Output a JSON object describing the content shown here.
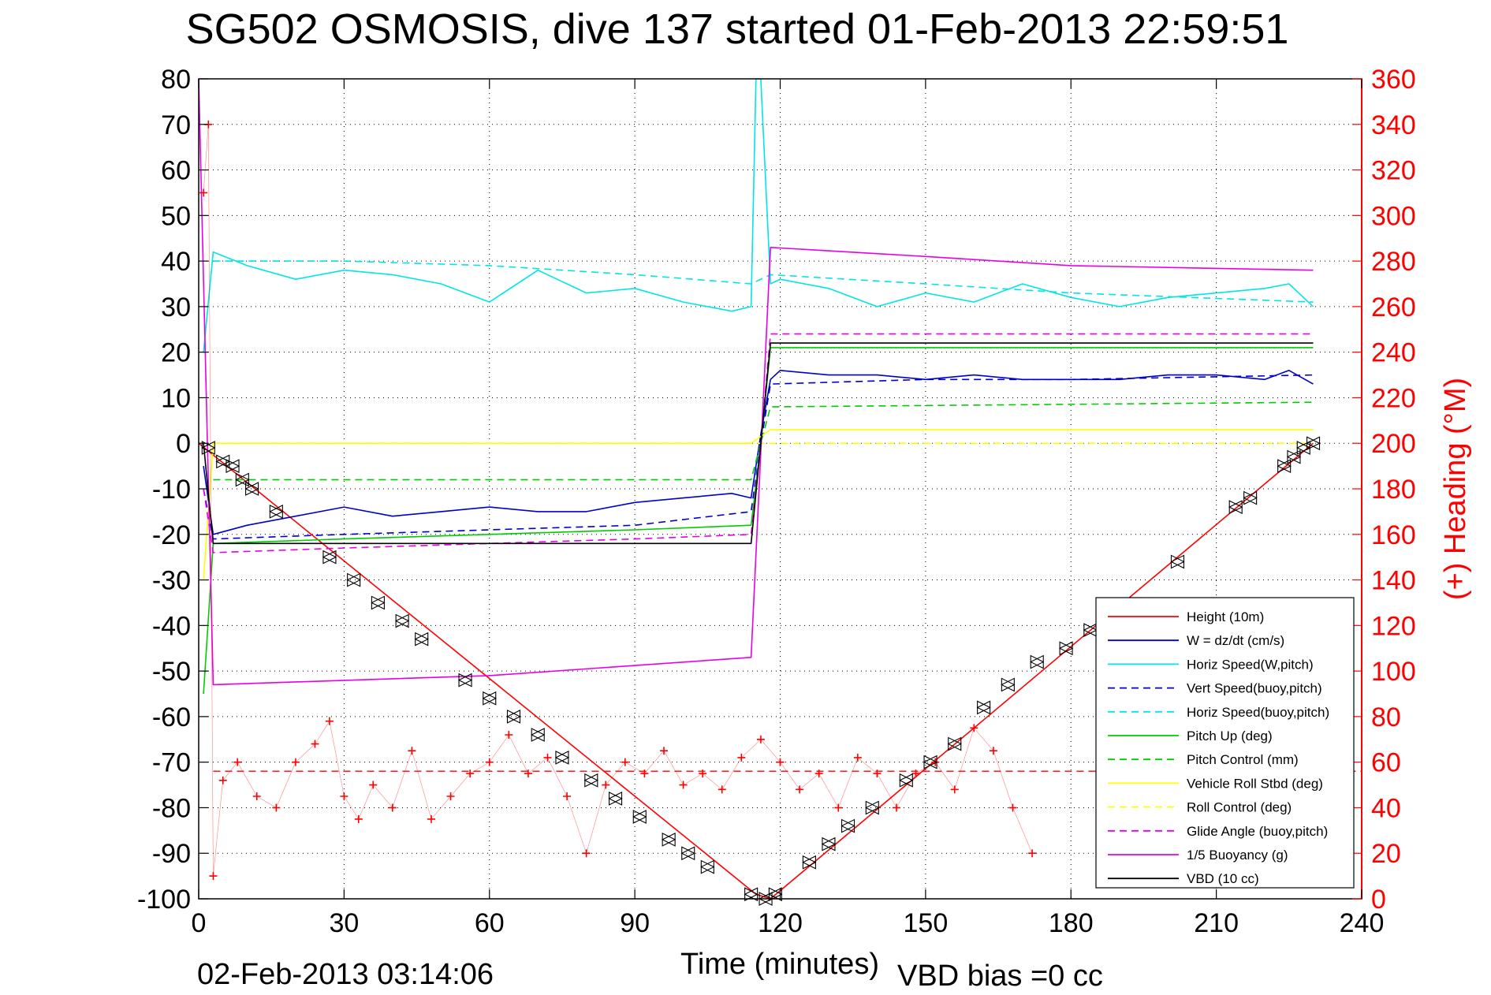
{
  "chart_data": {
    "type": "line",
    "title": "SG502 OSMOSIS, dive 137 started 01-Feb-2013 22:59:51",
    "xlabel": "Time (minutes)",
    "ylabel_right": "(+) Heading (°M)",
    "footer_left": "02-Feb-2013 03:14:06",
    "footer_right": "VBD bias =0 cc",
    "xlim": [
      0,
      240
    ],
    "ylim": [
      -100,
      80
    ],
    "ylim_right": [
      0,
      360
    ],
    "x_ticks": [
      "0",
      "30",
      "60",
      "90",
      "120",
      "150",
      "180",
      "210",
      "240"
    ],
    "y_ticks": [
      "80",
      "70",
      "60",
      "50",
      "40",
      "30",
      "20",
      "10",
      "0",
      "-10",
      "-20",
      "-30",
      "-40",
      "-50",
      "-60",
      "-70",
      "-80",
      "-90",
      "-100"
    ],
    "y_right_ticks": [
      "360",
      "340",
      "320",
      "300",
      "280",
      "260",
      "240",
      "220",
      "200",
      "180",
      "160",
      "140",
      "120",
      "100",
      "80",
      "60",
      "40",
      "20",
      "0"
    ],
    "grid": true,
    "legend_position": "bottom-right",
    "series": [
      {
        "name": "Height (10m)",
        "color": "#ff0000",
        "style": "solid",
        "x": [
          0,
          115,
          118,
          230
        ],
        "y": [
          0,
          -99,
          -100,
          0
        ]
      },
      {
        "name": "W = dz/dt (cm/s)",
        "color": "#0000cc",
        "style": "solid",
        "x": [
          1,
          3,
          10,
          20,
          30,
          40,
          50,
          60,
          70,
          80,
          90,
          100,
          110,
          114,
          116,
          118,
          120,
          130,
          140,
          150,
          160,
          170,
          180,
          190,
          200,
          210,
          220,
          225,
          230
        ],
        "y": [
          -5,
          -20,
          -18,
          -16,
          -14,
          -16,
          -15,
          -14,
          -15,
          -15,
          -13,
          -12,
          -11,
          -12,
          2,
          14,
          16,
          15,
          15,
          14,
          15,
          14,
          14,
          14,
          15,
          15,
          14,
          16,
          13
        ]
      },
      {
        "name": "Horiz Speed(W,pitch)",
        "color": "#00e5e5",
        "style": "solid",
        "x": [
          1,
          3,
          10,
          20,
          30,
          40,
          50,
          60,
          70,
          80,
          90,
          100,
          110,
          114,
          115,
          116,
          118,
          120,
          130,
          140,
          150,
          160,
          170,
          180,
          190,
          200,
          210,
          220,
          225,
          230
        ],
        "y": [
          20,
          42,
          39,
          36,
          38,
          37,
          35,
          31,
          38,
          33,
          34,
          31,
          29,
          30,
          80,
          80,
          35,
          36,
          34,
          30,
          33,
          31,
          35,
          32,
          30,
          32,
          33,
          34,
          35,
          30
        ]
      },
      {
        "name": "Vert Speed(buoy,pitch)",
        "color": "#0000cc",
        "style": "dashed",
        "x": [
          1,
          3,
          30,
          60,
          90,
          114,
          116,
          118,
          150,
          180,
          230
        ],
        "y": [
          -10,
          -21,
          -20,
          -19,
          -18,
          -15,
          0,
          13,
          14,
          14,
          15
        ]
      },
      {
        "name": "Horiz Speed(buoy,pitch)",
        "color": "#00e5e5",
        "style": "dashed",
        "x": [
          3,
          30,
          60,
          90,
          114,
          118,
          150,
          180,
          230
        ],
        "y": [
          40,
          40,
          39,
          37,
          35,
          37,
          35,
          33,
          31
        ]
      },
      {
        "name": "Pitch Up (deg)",
        "color": "#00cc00",
        "style": "solid",
        "x": [
          1,
          3,
          30,
          60,
          90,
          114,
          116,
          118,
          150,
          180,
          230
        ],
        "y": [
          -55,
          -22,
          -21,
          -20,
          -19,
          -18,
          0,
          21,
          21,
          21,
          21
        ]
      },
      {
        "name": "Pitch Control (mm)",
        "color": "#00cc00",
        "style": "dashed",
        "x": [
          3,
          114,
          118,
          230
        ],
        "y": [
          -8,
          -8,
          8,
          9
        ]
      },
      {
        "name": "Vehicle Roll Stbd (deg)",
        "color": "#ffff00",
        "style": "solid",
        "x": [
          1,
          3,
          114,
          118,
          230
        ],
        "y": [
          -30,
          0,
          0,
          3,
          3
        ]
      },
      {
        "name": "Roll Control (deg)",
        "color": "#ffff00",
        "style": "dashed",
        "x": [
          3,
          114,
          118,
          230
        ],
        "y": [
          0,
          0,
          0,
          0
        ]
      },
      {
        "name": "Glide Angle (buoy,pitch)",
        "color": "#e600e6",
        "style": "dashed",
        "x": [
          1,
          3,
          30,
          60,
          90,
          114,
          116,
          118,
          150,
          180,
          230
        ],
        "y": [
          -10,
          -24,
          -23,
          -22,
          -21,
          -20,
          0,
          24,
          24,
          24,
          24
        ]
      },
      {
        "name": "1/5 Buoyancy (g)",
        "color": "#e600e6",
        "style": "solid",
        "x": [
          0,
          3,
          60,
          114,
          118,
          150,
          180,
          230
        ],
        "y": [
          80,
          -53,
          -51,
          -47,
          43,
          41,
          39,
          38
        ]
      },
      {
        "name": "VBD (10 cc)",
        "color": "#000000",
        "style": "solid",
        "x": [
          1,
          3,
          114,
          116,
          118,
          230
        ],
        "y": [
          0,
          -22,
          -22,
          0,
          22,
          22
        ]
      }
    ],
    "heading_series": {
      "name": "(+) Heading",
      "color": "#ff0000",
      "style": "markers",
      "x": [
        1,
        2,
        3,
        5,
        8,
        12,
        16,
        20,
        24,
        27,
        30,
        33,
        36,
        40,
        44,
        48,
        52,
        56,
        60,
        64,
        68,
        72,
        76,
        80,
        84,
        88,
        92,
        96,
        100,
        104,
        108,
        112,
        116,
        120,
        124,
        128,
        132,
        136,
        140,
        144,
        148,
        152,
        156,
        160,
        164,
        168,
        172
      ],
      "y": [
        310,
        340,
        10,
        52,
        60,
        45,
        40,
        60,
        68,
        78,
        45,
        35,
        50,
        40,
        65,
        35,
        45,
        55,
        60,
        72,
        55,
        62,
        45,
        20,
        50,
        60,
        55,
        65,
        50,
        55,
        48,
        62,
        70,
        60,
        48,
        55,
        40,
        62,
        55,
        40,
        55,
        60,
        48,
        75,
        65,
        40,
        20
      ],
      "mean": 56
    },
    "vbd_markers": {
      "color": "#000000",
      "x": [
        2,
        5,
        7,
        9,
        11,
        16,
        27,
        32,
        37,
        42,
        46,
        55,
        60,
        65,
        70,
        75,
        81,
        86,
        91,
        97,
        101,
        105,
        114,
        117,
        119,
        126,
        130,
        134,
        139,
        146,
        151,
        156,
        162,
        167,
        173,
        179,
        184,
        202,
        214,
        217,
        224,
        226,
        228,
        230
      ],
      "y": [
        -1,
        -4,
        -5,
        -8,
        -10,
        -15,
        -25,
        -30,
        -35,
        -39,
        -43,
        -52,
        -56,
        -60,
        -64,
        -69,
        -74,
        -78,
        -82,
        -87,
        -90,
        -93,
        -99,
        -100,
        -99,
        -92,
        -88,
        -84,
        -80,
        -74,
        -70,
        -66,
        -58,
        -53,
        -48,
        -45,
        -41,
        -26,
        -14,
        -12,
        -5,
        -3,
        -1,
        0
      ]
    }
  }
}
